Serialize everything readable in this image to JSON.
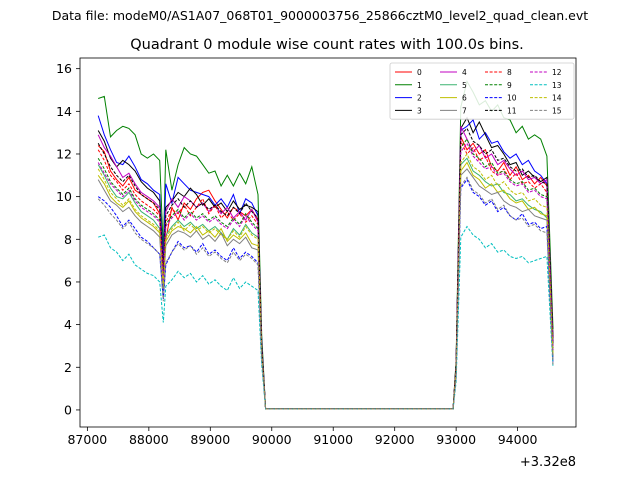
{
  "header": {
    "data_file": "Data file: modeM0/AS1A07_068T01_9000003756_25866cztM0_level2_quad_clean.evt"
  },
  "chart_data": {
    "type": "line",
    "title": "Quadrant 0 module wise count rates with 100.0s bins.",
    "xlabel": "",
    "ylabel": "",
    "x_offset_label": "+3.32e8",
    "xlim": [
      86880,
      94950
    ],
    "ylim": [
      -0.8,
      16.5
    ],
    "x_ticks": [
      87000,
      88000,
      89000,
      90000,
      91000,
      92000,
      93000,
      94000
    ],
    "y_ticks": [
      0,
      2,
      4,
      6,
      8,
      10,
      12,
      14,
      16
    ],
    "grid": false,
    "legend_position": "top-right",
    "x": [
      87176,
      87276,
      87376,
      87476,
      87576,
      87676,
      87776,
      87876,
      87976,
      88076,
      88176,
      88236,
      88276,
      88376,
      88476,
      88576,
      88676,
      88776,
      88876,
      88976,
      89076,
      89176,
      89276,
      89376,
      89476,
      89576,
      89676,
      89776,
      89836,
      89900,
      91000,
      92000,
      92950,
      93000,
      93076,
      93176,
      93276,
      93376,
      93476,
      93576,
      93676,
      93776,
      93876,
      93976,
      94076,
      94176,
      94276,
      94376,
      94476,
      94576
    ],
    "series": [
      {
        "name": "0",
        "color": "#ff0000",
        "dash": "solid",
        "values": [
          12.4,
          12.1,
          11.2,
          10.8,
          10.5,
          10.9,
          10.3,
          10.1,
          9.9,
          9.7,
          9.2,
          6.3,
          8.0,
          9.5,
          8.9,
          9.7,
          9.4,
          9.9,
          10.2,
          10.3,
          9.8,
          9.4,
          9.0,
          9.5,
          9.3,
          9.1,
          9.4,
          8.9,
          3.0,
          0.05,
          0.05,
          0.05,
          0.05,
          2.0,
          12.8,
          12.2,
          12.5,
          12.0,
          12.2,
          11.4,
          11.2,
          11.6,
          11.0,
          11.4,
          10.8,
          11.0,
          10.6,
          10.9,
          10.5,
          3.2
        ]
      },
      {
        "name": "1",
        "color": "#008000",
        "dash": "solid",
        "values": [
          14.6,
          14.7,
          12.8,
          13.1,
          13.3,
          13.2,
          12.9,
          12.0,
          11.8,
          12.0,
          11.7,
          7.5,
          12.2,
          10.3,
          11.5,
          12.3,
          12.0,
          11.9,
          11.5,
          11.1,
          11.2,
          10.5,
          11.0,
          10.5,
          11.1,
          10.6,
          11.4,
          10.1,
          3.5,
          0.05,
          0.05,
          0.05,
          0.05,
          2.3,
          14.2,
          15.4,
          14.9,
          14.3,
          14.5,
          14.0,
          14.3,
          13.7,
          13.6,
          13.0,
          13.3,
          12.7,
          12.9,
          12.7,
          11.9,
          3.8
        ]
      },
      {
        "name": "2",
        "color": "#0000ff",
        "dash": "solid",
        "values": [
          13.8,
          12.9,
          12.2,
          11.6,
          11.5,
          11.9,
          11.4,
          10.8,
          10.6,
          10.3,
          10.1,
          6.9,
          10.6,
          9.7,
          10.9,
          10.6,
          10.3,
          10.2,
          10.1,
          10.0,
          9.6,
          9.9,
          9.5,
          10.1,
          9.2,
          9.9,
          9.7,
          9.1,
          3.2,
          0.05,
          0.05,
          0.05,
          0.05,
          2.1,
          13.1,
          13.3,
          13.6,
          12.7,
          13.0,
          12.5,
          12.6,
          12.1,
          11.8,
          12.0,
          11.5,
          11.7,
          11.2,
          11.0,
          10.6,
          3.3
        ]
      },
      {
        "name": "3",
        "color": "#000000",
        "dash": "solid",
        "values": [
          13.1,
          12.6,
          11.8,
          11.4,
          11.7,
          11.5,
          11.2,
          10.7,
          10.4,
          10.2,
          9.8,
          6.6,
          9.5,
          9.8,
          10.2,
          10.0,
          10.4,
          10.1,
          9.6,
          9.9,
          9.5,
          9.7,
          9.3,
          9.8,
          9.4,
          9.6,
          9.5,
          9.3,
          3.1,
          0.05,
          0.05,
          0.05,
          0.05,
          2.2,
          13.2,
          13.7,
          13.0,
          13.5,
          12.9,
          12.3,
          12.4,
          12.0,
          11.5,
          11.6,
          11.0,
          11.2,
          10.9,
          10.7,
          10.9,
          3.4
        ]
      },
      {
        "name": "4",
        "color": "#c000c0",
        "dash": "solid",
        "values": [
          12.9,
          12.3,
          11.9,
          11.4,
          10.9,
          11.1,
          10.6,
          10.2,
          10.0,
          9.8,
          9.5,
          6.5,
          9.3,
          9.9,
          9.5,
          10.0,
          9.8,
          9.5,
          9.7,
          9.3,
          9.6,
          9.2,
          9.5,
          9.0,
          9.3,
          8.9,
          9.4,
          8.8,
          3.0,
          0.05,
          0.05,
          0.05,
          0.05,
          2.0,
          13.3,
          12.7,
          12.1,
          12.4,
          11.8,
          12.0,
          11.5,
          11.7,
          11.3,
          11.0,
          11.2,
          10.8,
          10.9,
          10.6,
          10.8,
          3.1
        ]
      },
      {
        "name": "5",
        "color": "#3cb371",
        "dash": "solid",
        "values": [
          11.5,
          11.0,
          10.4,
          10.0,
          9.9,
          10.2,
          9.7,
          9.3,
          9.1,
          8.9,
          8.5,
          5.9,
          8.2,
          8.6,
          8.9,
          8.6,
          8.8,
          8.5,
          8.7,
          8.4,
          8.6,
          8.3,
          8.0,
          8.5,
          8.2,
          8.7,
          8.3,
          8.1,
          2.8,
          0.05,
          0.05,
          0.05,
          0.05,
          1.9,
          11.5,
          11.8,
          11.2,
          11.0,
          10.7,
          10.5,
          10.6,
          10.2,
          10.1,
          9.8,
          9.9,
          9.6,
          9.4,
          9.3,
          9.0,
          2.6
        ]
      },
      {
        "name": "6",
        "color": "#bfbf00",
        "dash": "solid",
        "values": [
          11.0,
          10.6,
          10.0,
          9.7,
          9.5,
          9.8,
          9.3,
          9.0,
          8.8,
          8.6,
          8.3,
          5.8,
          7.9,
          8.4,
          8.6,
          8.5,
          8.3,
          8.6,
          8.2,
          8.4,
          8.1,
          8.5,
          7.9,
          8.2,
          8.0,
          8.3,
          7.8,
          7.7,
          2.7,
          0.05,
          0.05,
          0.05,
          0.05,
          1.8,
          11.2,
          11.6,
          11.0,
          10.8,
          10.4,
          10.6,
          10.2,
          10.3,
          9.9,
          9.7,
          9.8,
          9.4,
          9.5,
          9.2,
          9.1,
          2.5
        ]
      },
      {
        "name": "7",
        "color": "#808080",
        "dash": "solid",
        "values": [
          10.8,
          10.3,
          9.8,
          9.6,
          9.3,
          9.5,
          9.1,
          8.8,
          8.6,
          8.4,
          8.1,
          5.6,
          7.7,
          8.2,
          8.4,
          8.3,
          8.1,
          8.4,
          8.0,
          8.2,
          7.9,
          8.3,
          7.7,
          8.0,
          7.8,
          8.1,
          7.6,
          7.5,
          2.6,
          0.05,
          0.05,
          0.05,
          0.05,
          1.7,
          11.0,
          11.3,
          10.9,
          10.5,
          10.3,
          10.1,
          10.2,
          9.8,
          9.6,
          9.5,
          9.3,
          9.4,
          9.1,
          9.0,
          8.9,
          2.4
        ]
      },
      {
        "name": "8",
        "color": "#ff0000",
        "dash": "dashed",
        "values": [
          12.2,
          11.7,
          11.0,
          10.7,
          10.3,
          10.6,
          10.1,
          9.8,
          9.6,
          9.4,
          9.1,
          6.2,
          8.8,
          9.4,
          9.2,
          9.6,
          9.1,
          9.5,
          9.9,
          9.2,
          9.6,
          9.0,
          9.3,
          8.9,
          9.2,
          8.8,
          9.1,
          8.7,
          2.9,
          0.05,
          0.05,
          0.05,
          0.05,
          2.0,
          12.6,
          12.0,
          12.3,
          11.7,
          11.9,
          11.2,
          11.0,
          11.3,
          10.8,
          11.1,
          10.6,
          10.7,
          10.4,
          10.6,
          10.2,
          3.0
        ]
      },
      {
        "name": "9",
        "color": "#008000",
        "dash": "dashed",
        "values": [
          11.8,
          11.3,
          10.7,
          10.4,
          10.1,
          10.4,
          9.9,
          9.6,
          9.4,
          9.2,
          8.9,
          6.1,
          8.7,
          9.1,
          9.4,
          9.0,
          9.3,
          9.0,
          9.2,
          8.9,
          9.1,
          8.8,
          8.6,
          9.0,
          8.7,
          9.2,
          8.8,
          8.5,
          2.9,
          0.05,
          0.05,
          0.05,
          0.05,
          1.9,
          12.3,
          12.7,
          12.0,
          11.8,
          11.4,
          11.6,
          11.1,
          11.2,
          10.8,
          10.6,
          10.7,
          10.3,
          10.4,
          10.1,
          10.0,
          2.9
        ]
      },
      {
        "name": "10",
        "color": "#0000ff",
        "dash": "dashed",
        "values": [
          10.0,
          9.8,
          9.5,
          9.1,
          8.6,
          8.9,
          8.5,
          8.1,
          7.9,
          7.6,
          7.3,
          5.2,
          6.8,
          7.4,
          7.9,
          7.6,
          7.7,
          7.4,
          7.8,
          7.3,
          7.5,
          7.2,
          7.0,
          7.6,
          7.1,
          7.4,
          7.2,
          6.9,
          2.5,
          0.05,
          0.05,
          0.05,
          0.05,
          1.6,
          10.4,
          10.8,
          10.2,
          10.0,
          9.6,
          9.8,
          9.3,
          9.5,
          9.1,
          8.9,
          9.2,
          8.7,
          8.8,
          8.5,
          8.6,
          2.2
        ]
      },
      {
        "name": "11",
        "color": "#000000",
        "dash": "dashed",
        "values": [
          12.5,
          12.0,
          11.4,
          11.0,
          10.7,
          11.0,
          10.5,
          10.1,
          9.9,
          9.7,
          9.4,
          6.4,
          9.1,
          9.6,
          9.9,
          9.5,
          9.8,
          9.5,
          9.7,
          9.4,
          9.6,
          9.3,
          9.1,
          9.5,
          9.2,
          9.7,
          9.3,
          9.0,
          3.0,
          0.05,
          0.05,
          0.05,
          0.05,
          2.1,
          12.9,
          13.2,
          12.6,
          12.4,
          12.0,
          12.2,
          11.7,
          11.8,
          11.4,
          11.2,
          11.3,
          10.9,
          11.0,
          10.7,
          10.6,
          3.1
        ]
      },
      {
        "name": "12",
        "color": "#c000c0",
        "dash": "dashed",
        "values": [
          11.6,
          11.1,
          10.6,
          10.3,
          10.0,
          10.3,
          9.8,
          9.5,
          9.3,
          9.1,
          8.8,
          6.0,
          8.6,
          9.0,
          9.3,
          8.9,
          9.2,
          8.9,
          9.1,
          8.8,
          9.0,
          8.7,
          8.5,
          8.9,
          8.6,
          9.1,
          8.7,
          8.4,
          2.8,
          0.05,
          0.05,
          0.05,
          0.05,
          1.9,
          12.1,
          12.5,
          11.9,
          11.6,
          11.3,
          11.4,
          11.0,
          11.1,
          10.7,
          10.5,
          10.6,
          10.2,
          10.3,
          10.0,
          9.9,
          2.8
        ]
      },
      {
        "name": "13",
        "color": "#00bfbf",
        "dash": "dashed",
        "values": [
          8.1,
          8.2,
          7.6,
          7.4,
          7.0,
          7.3,
          6.8,
          6.6,
          6.4,
          6.3,
          6.0,
          4.1,
          5.8,
          6.1,
          6.5,
          6.2,
          6.4,
          6.0,
          6.3,
          5.9,
          6.1,
          5.8,
          5.6,
          6.2,
          5.7,
          6.0,
          5.8,
          5.6,
          2.1,
          0.05,
          0.05,
          0.05,
          0.05,
          1.3,
          8.1,
          8.6,
          8.2,
          8.0,
          7.6,
          7.8,
          7.4,
          7.5,
          7.2,
          7.1,
          7.2,
          6.9,
          7.0,
          7.1,
          7.2,
          2.0
        ]
      },
      {
        "name": "14",
        "color": "#bfbf00",
        "dash": "dashed",
        "values": [
          11.3,
          10.8,
          10.2,
          9.9,
          9.6,
          9.9,
          9.4,
          9.1,
          8.9,
          8.7,
          8.4,
          5.8,
          8.1,
          8.5,
          8.8,
          8.4,
          8.7,
          8.4,
          8.6,
          8.3,
          8.5,
          8.2,
          8.0,
          8.4,
          8.1,
          8.6,
          8.2,
          8.0,
          2.7,
          0.05,
          0.05,
          0.05,
          0.05,
          1.8,
          11.6,
          12.0,
          11.4,
          11.2,
          10.8,
          11.0,
          10.5,
          10.7,
          10.3,
          10.1,
          10.2,
          9.8,
          9.9,
          9.6,
          9.5,
          2.6
        ]
      },
      {
        "name": "15",
        "color": "#808080",
        "dash": "dashed",
        "values": [
          9.9,
          9.6,
          9.2,
          8.9,
          8.5,
          8.8,
          8.3,
          8.0,
          7.8,
          7.6,
          7.3,
          5.1,
          6.9,
          7.4,
          7.8,
          7.5,
          7.7,
          7.3,
          7.6,
          7.2,
          7.4,
          7.1,
          6.9,
          7.4,
          7.0,
          7.3,
          7.1,
          6.8,
          2.4,
          0.05,
          0.05,
          0.05,
          0.05,
          1.5,
          10.5,
          10.9,
          10.3,
          10.1,
          9.7,
          9.9,
          9.4,
          9.6,
          9.1,
          8.9,
          9.0,
          8.6,
          8.7,
          8.4,
          8.3,
          2.1
        ]
      }
    ]
  }
}
